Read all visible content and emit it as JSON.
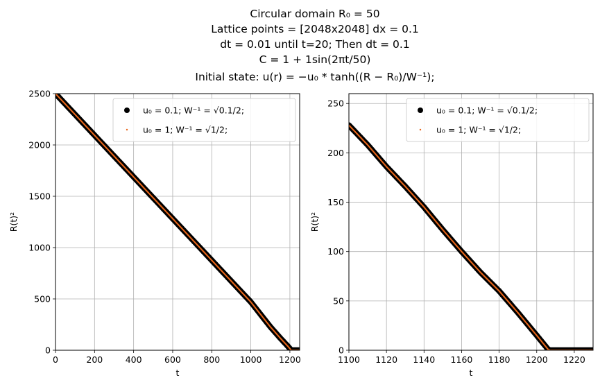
{
  "figure": {
    "title_lines": [
      "Circular domain R₀ = 50",
      "Lattice points = [2048x2048] dx = 0.1",
      "dt = 0.01 until t=20; Then dt = 0.1",
      "C = 1 + 1sin(2πt/50)",
      "Initial state: u(r) = −u₀ * tanh((R − R₀)/W⁻¹);"
    ]
  },
  "colors": {
    "series1": "#000000",
    "series2": "#e8661a"
  },
  "chart_data": [
    {
      "type": "scatter",
      "xlabel": "t",
      "ylabel": "R(t)²",
      "xlim": [
        0,
        1250
      ],
      "ylim": [
        0,
        2500
      ],
      "xticks": [
        0,
        200,
        400,
        600,
        800,
        1000,
        1200
      ],
      "yticks": [
        0,
        500,
        1000,
        1500,
        2000,
        2500
      ],
      "grid": true,
      "legend_position": "top-right",
      "series": [
        {
          "name": "u₀ = 0.1; W⁻¹ = √0.1/2;",
          "marker": "large-dot",
          "points": [
            [
              0,
              2500
            ],
            [
              100,
              2297
            ],
            [
              200,
              2094
            ],
            [
              300,
              1891
            ],
            [
              400,
              1688
            ],
            [
              500,
              1485
            ],
            [
              600,
              1282
            ],
            [
              700,
              1079
            ],
            [
              800,
              876
            ],
            [
              900,
              673
            ],
            [
              1000,
              470
            ],
            [
              1100,
              228
            ],
            [
              1150,
              120
            ],
            [
              1190,
              38
            ],
            [
              1207,
              0
            ],
            [
              1250,
              0
            ]
          ]
        },
        {
          "name": "u₀ = 1; W⁻¹ = √1/2;",
          "marker": "small-dot",
          "points": [
            [
              0,
              2500
            ],
            [
              100,
              2297
            ],
            [
              200,
              2094
            ],
            [
              300,
              1891
            ],
            [
              400,
              1688
            ],
            [
              500,
              1485
            ],
            [
              600,
              1282
            ],
            [
              700,
              1079
            ],
            [
              800,
              876
            ],
            [
              900,
              673
            ],
            [
              1000,
              470
            ],
            [
              1100,
              228
            ],
            [
              1150,
              120
            ],
            [
              1190,
              38
            ],
            [
              1207,
              0
            ],
            [
              1250,
              0
            ]
          ]
        }
      ]
    },
    {
      "type": "scatter",
      "xlabel": "t",
      "ylabel": "R(t)²",
      "xlim": [
        1100,
        1230
      ],
      "ylim": [
        0,
        260
      ],
      "xticks": [
        1100,
        1120,
        1140,
        1160,
        1180,
        1200,
        1220
      ],
      "yticks": [
        0,
        50,
        100,
        150,
        200,
        250
      ],
      "grid": true,
      "legend_position": "top-right",
      "series": [
        {
          "name": "u₀ = 0.1; W⁻¹ = √0.1/2;",
          "marker": "large-dot",
          "points": [
            [
              1100,
              228
            ],
            [
              1110,
              208
            ],
            [
              1120,
              186
            ],
            [
              1130,
              166
            ],
            [
              1140,
              145
            ],
            [
              1150,
              122
            ],
            [
              1160,
              100
            ],
            [
              1170,
              79
            ],
            [
              1180,
              60
            ],
            [
              1190,
              38
            ],
            [
              1200,
              15
            ],
            [
              1206,
              1
            ],
            [
              1207,
              0
            ],
            [
              1230,
              0
            ]
          ]
        },
        {
          "name": "u₀ = 1; W⁻¹ = √1/2;",
          "marker": "small-dot",
          "points": [
            [
              1100,
              228
            ],
            [
              1110,
              208
            ],
            [
              1120,
              186
            ],
            [
              1130,
              166
            ],
            [
              1140,
              145
            ],
            [
              1150,
              122
            ],
            [
              1160,
              100
            ],
            [
              1170,
              79
            ],
            [
              1180,
              60
            ],
            [
              1190,
              38
            ],
            [
              1200,
              15
            ],
            [
              1206,
              1
            ],
            [
              1207,
              0
            ],
            [
              1230,
              0
            ]
          ]
        }
      ]
    }
  ]
}
